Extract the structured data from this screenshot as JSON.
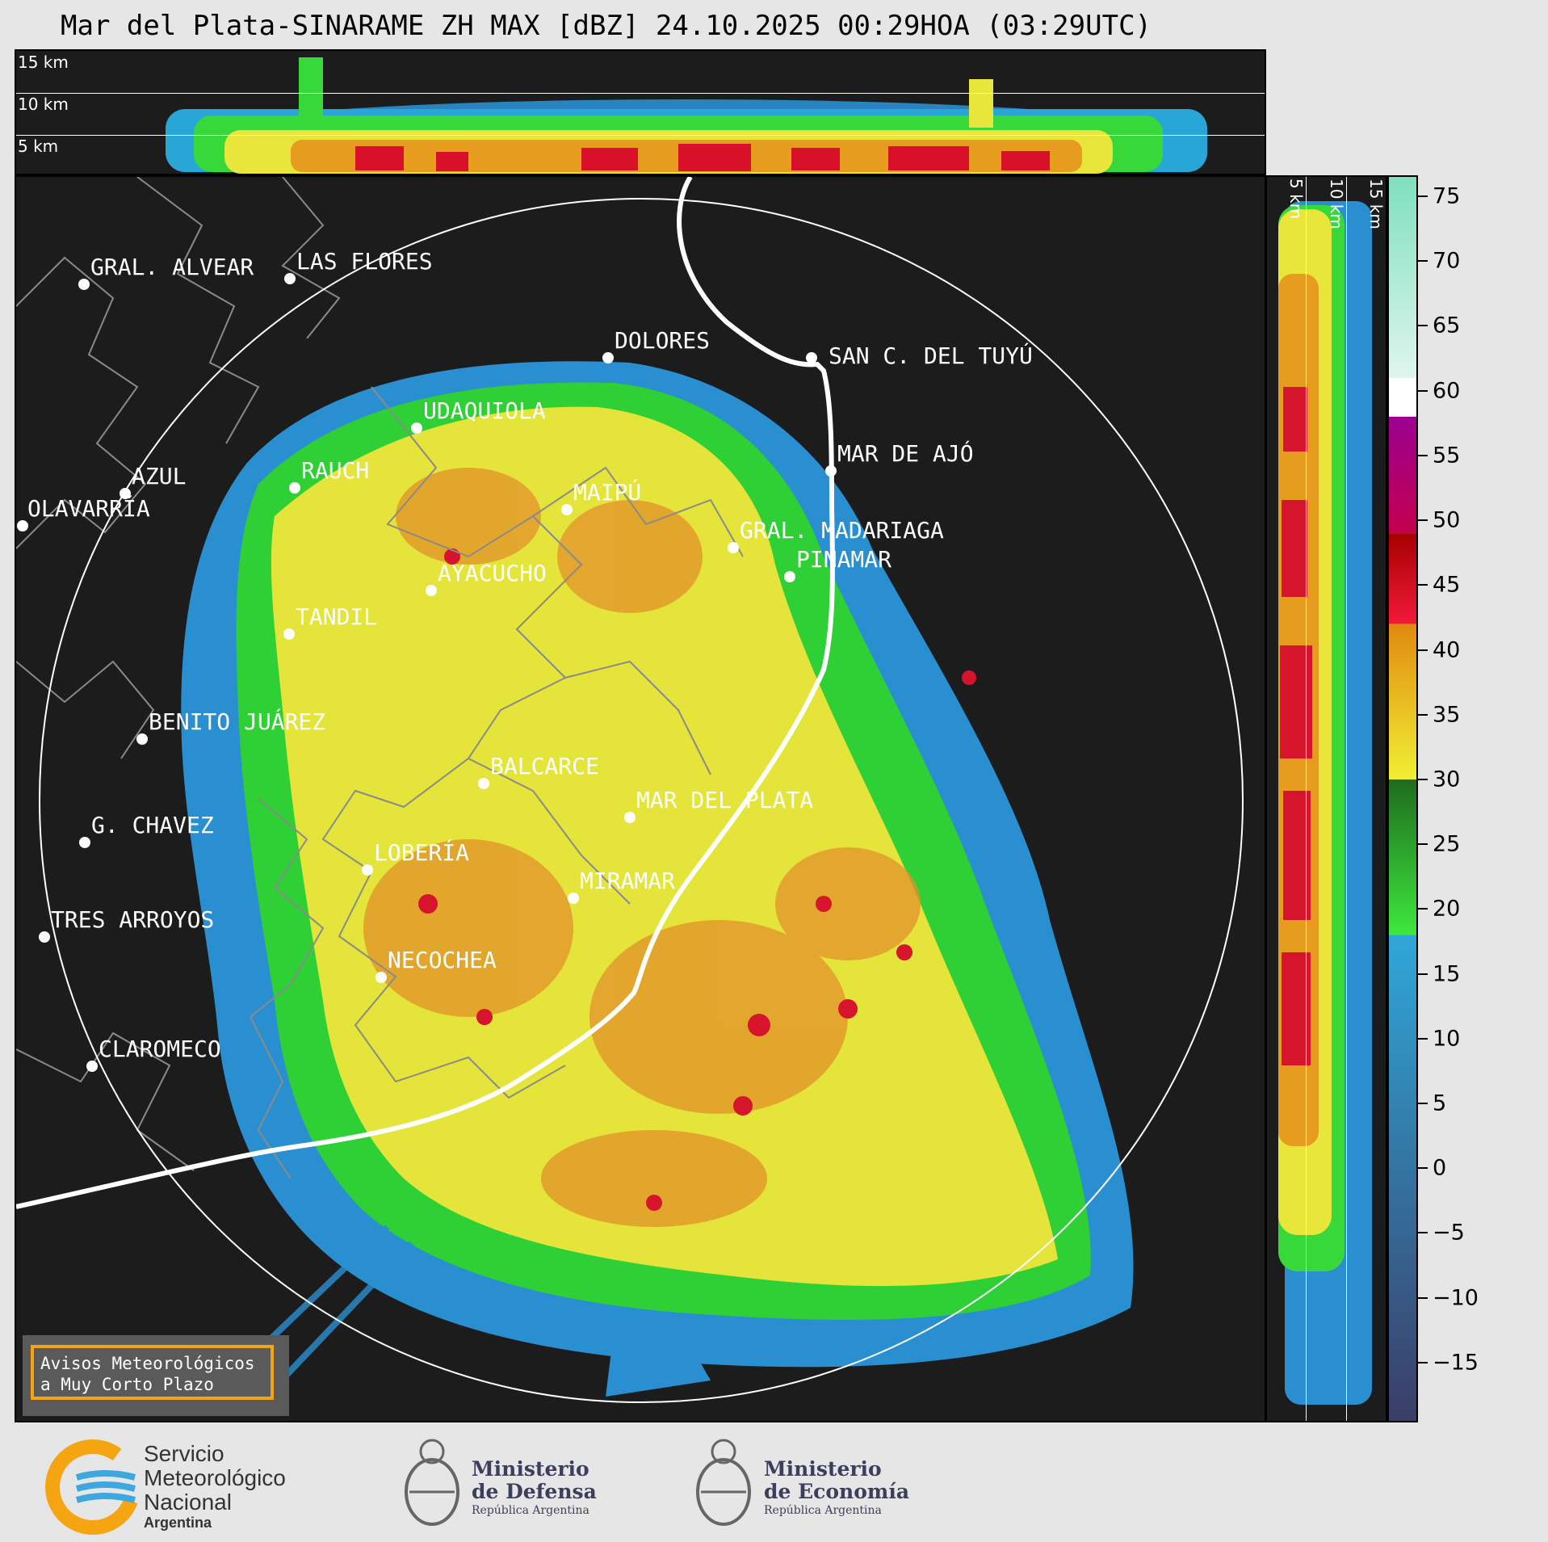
{
  "title": "Mar del Plata-SINARAME ZH MAX [dBZ] 24.10.2025 00:29HOA (03:29UTC)",
  "top_panel": {
    "altitude_labels": [
      "15 km",
      "10 km",
      "5 km"
    ]
  },
  "side_panel": {
    "altitude_labels": [
      "5 km",
      "10 km",
      "15 km"
    ]
  },
  "cities": [
    {
      "name": "GRAL. ALVEAR"
    },
    {
      "name": "LAS FLORES"
    },
    {
      "name": "DOLORES"
    },
    {
      "name": "SAN C. DEL TUYÚ"
    },
    {
      "name": "UDAQUIOLA"
    },
    {
      "name": "MAR DE AJÓ"
    },
    {
      "name": "AZUL"
    },
    {
      "name": "RAUCH"
    },
    {
      "name": "OLAVARRÍA"
    },
    {
      "name": "MAIPÚ"
    },
    {
      "name": "GRAL. MADARIAGA"
    },
    {
      "name": "PINAMAR"
    },
    {
      "name": "AYACUCHO"
    },
    {
      "name": "TANDIL"
    },
    {
      "name": "BENITO JUÁREZ"
    },
    {
      "name": "BALCARCE"
    },
    {
      "name": "MAR DEL PLATA"
    },
    {
      "name": "G. CHAVEZ"
    },
    {
      "name": "LOBERÍA"
    },
    {
      "name": "MIRAMAR"
    },
    {
      "name": "TRES ARROYOS"
    },
    {
      "name": "NECOCHEA"
    },
    {
      "name": "CLAROMECO"
    }
  ],
  "colorbar": {
    "tick_labels": [
      "75",
      "70",
      "65",
      "60",
      "55",
      "50",
      "45",
      "40",
      "35",
      "30",
      "25",
      "20",
      "15",
      "10",
      "5",
      "0",
      "−5",
      "−10",
      "−15"
    ],
    "tick_values": [
      75,
      70,
      65,
      60,
      55,
      50,
      45,
      40,
      35,
      30,
      25,
      20,
      15,
      10,
      5,
      0,
      -5,
      -10,
      -15
    ],
    "range": [
      -19.5,
      76.5
    ],
    "bands": [
      {
        "from": -19.5,
        "to": 18,
        "color_top": "#2fa7d8",
        "color_bottom": "#3a3d66"
      },
      {
        "from": 18,
        "to": 30,
        "color_top": "#1f6b1f",
        "color_bottom": "#3ee83e"
      },
      {
        "from": 30,
        "to": 42,
        "color_top": "#e08a10",
        "color_bottom": "#f1ef34"
      },
      {
        "from": 42,
        "to": 49,
        "color_top": "#a60000",
        "color_bottom": "#f21a3a"
      },
      {
        "from": 49,
        "to": 58,
        "color_top": "#9a0090",
        "color_bottom": "#c4004e"
      },
      {
        "from": 58,
        "to": 61,
        "color_top": "#ffffff",
        "color_bottom": "#ffffff"
      },
      {
        "from": 61,
        "to": 76.5,
        "color_top": "#7fe0bf",
        "color_bottom": "#dff5ee"
      }
    ]
  },
  "avisos": {
    "line1": "Avisos Meteorológicos",
    "line2": "a Muy Corto Plazo"
  },
  "logos": {
    "smn": [
      "Servicio",
      "Meteorológico",
      "Nacional",
      "Argentina"
    ],
    "defensa": [
      "Ministerio",
      "de Defensa",
      "República Argentina"
    ],
    "economia": [
      "Ministerio",
      "de Economía",
      "República Argentina"
    ]
  },
  "colors": {
    "map_background": "#1c1c1c",
    "smn_orange": "#f5a512",
    "smn_blue": "#3da8e0",
    "ministry_text": "#3b3f5c"
  }
}
